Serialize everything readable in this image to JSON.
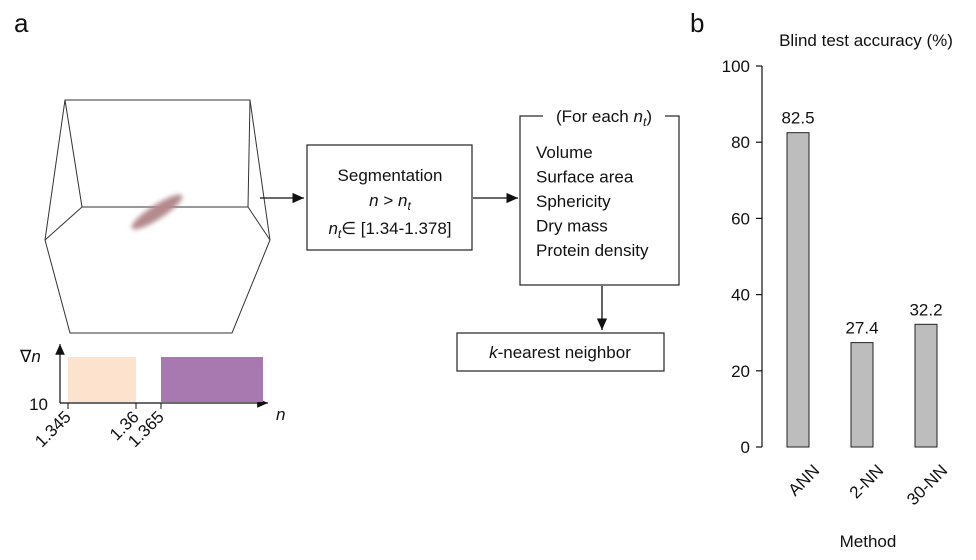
{
  "panel_a": {
    "label": "a",
    "segmentation": {
      "title": "Segmentation",
      "condition": [
        "n",
        " > ",
        "n",
        "t"
      ],
      "range": [
        "n",
        "t",
        "∈ [1.34-1.378]"
      ]
    },
    "features": {
      "header": [
        "(For each ",
        "n",
        "t",
        ")"
      ],
      "items": [
        "Volume",
        "Surface area",
        "Sphericity",
        "Dry mass",
        "Protein density"
      ]
    },
    "classifier": [
      "k",
      "-nearest neighbor"
    ],
    "inset": {
      "y_label": [
        "∇",
        "n"
      ],
      "y_tick": "10",
      "x_label": "n",
      "x_ticks": [
        "1.345",
        "1.36",
        "1.365"
      ]
    }
  },
  "panel_b": {
    "label": "b"
  },
  "chart_data": {
    "type": "bar",
    "y_label": "Blind test accuracy (%)",
    "x_label": "Method",
    "categories": [
      "ANN",
      "2-NN",
      "30-NN"
    ],
    "values": [
      82.5,
      27.4,
      32.2
    ],
    "color": "#bdbdbd",
    "ylim": [
      0,
      100
    ],
    "yticks": [
      0,
      20,
      40,
      60,
      80,
      100
    ]
  }
}
